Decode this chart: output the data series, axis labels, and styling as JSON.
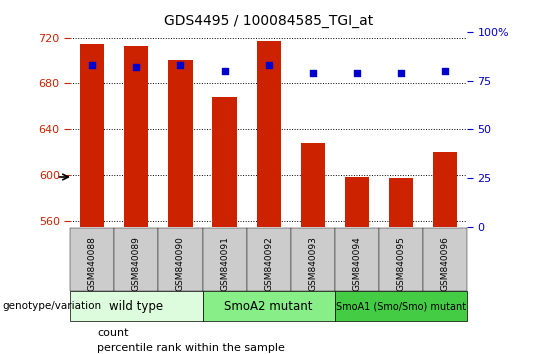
{
  "title": "GDS4495 / 100084585_TGI_at",
  "samples": [
    "GSM840088",
    "GSM840089",
    "GSM840090",
    "GSM840091",
    "GSM840092",
    "GSM840093",
    "GSM840094",
    "GSM840095",
    "GSM840096"
  ],
  "counts": [
    714,
    713,
    700,
    668,
    717,
    628,
    598,
    597,
    620
  ],
  "percentile_ranks": [
    83,
    82,
    83,
    80,
    83,
    79,
    79,
    79,
    80
  ],
  "ylim_left": [
    555,
    725
  ],
  "ylim_right": [
    0,
    100
  ],
  "yticks_left": [
    560,
    600,
    640,
    680,
    720
  ],
  "yticks_right": [
    0,
    25,
    50,
    75,
    100
  ],
  "groups": [
    {
      "label": "wild type",
      "indices": [
        0,
        1,
        2
      ],
      "color": "#ddfcdd"
    },
    {
      "label": "SmoA2 mutant",
      "indices": [
        3,
        4,
        5
      ],
      "color": "#88ee88"
    },
    {
      "label": "SmoA1 (Smo/Smo) mutant",
      "indices": [
        6,
        7,
        8
      ],
      "color": "#44cc44"
    }
  ],
  "bar_color": "#cc2200",
  "scatter_color": "#0000cc",
  "bar_width": 0.55,
  "legend_count_label": "count",
  "legend_percentile_label": "percentile rank within the sample",
  "genotype_label": "genotype/variation",
  "tick_label_bg": "#cccccc",
  "left_tick_color": "#cc2200",
  "right_tick_color": "#0000cc"
}
